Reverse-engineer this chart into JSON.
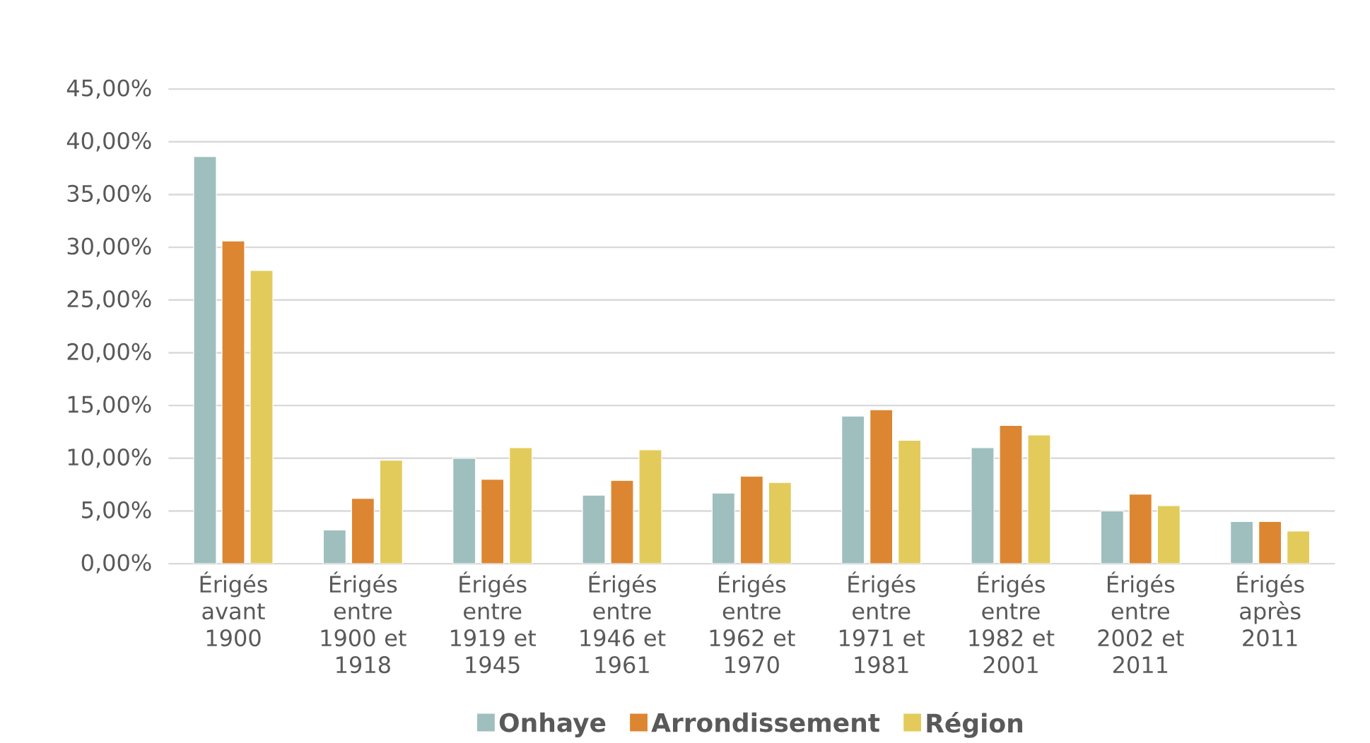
{
  "chart_data": {
    "type": "bar",
    "categories": [
      "Érigés avant 1900",
      "Érigés entre 1900 et 1918",
      "Érigés entre 1919 et 1945",
      "Érigés entre 1946 et 1961",
      "Érigés entre 1962 et 1970",
      "Érigés entre 1971 et 1981",
      "Érigés entre 1982 et 2001",
      "Érigés entre 2002 et 2011",
      "Érigés après 2011"
    ],
    "series": [
      {
        "name": "Onhaye",
        "color": "#9fbfbe",
        "values": [
          38.6,
          3.2,
          10.0,
          6.5,
          6.7,
          14.0,
          11.0,
          5.0,
          4.0
        ]
      },
      {
        "name": "Arrondissement",
        "color": "#dc8632",
        "values": [
          30.6,
          6.2,
          8.0,
          7.9,
          8.3,
          14.6,
          13.1,
          6.6,
          4.0
        ]
      },
      {
        "name": "Région",
        "color": "#e3cb5b",
        "values": [
          27.8,
          9.8,
          11.0,
          10.8,
          7.7,
          11.7,
          12.2,
          5.5,
          3.1
        ]
      }
    ],
    "ylim": [
      0,
      45
    ],
    "yticks": [
      {
        "value": 0,
        "label": "0,00%"
      },
      {
        "value": 5,
        "label": "5,00%"
      },
      {
        "value": 10,
        "label": "10,00%"
      },
      {
        "value": 15,
        "label": "15,00%"
      },
      {
        "value": 20,
        "label": "20,00%"
      },
      {
        "value": 25,
        "label": "25,00%"
      },
      {
        "value": 30,
        "label": "30,00%"
      },
      {
        "value": 35,
        "label": "35,00%"
      },
      {
        "value": 40,
        "label": "40,00%"
      },
      {
        "value": 45,
        "label": "45,00%"
      }
    ],
    "grid": "y",
    "legend": "bottom"
  }
}
